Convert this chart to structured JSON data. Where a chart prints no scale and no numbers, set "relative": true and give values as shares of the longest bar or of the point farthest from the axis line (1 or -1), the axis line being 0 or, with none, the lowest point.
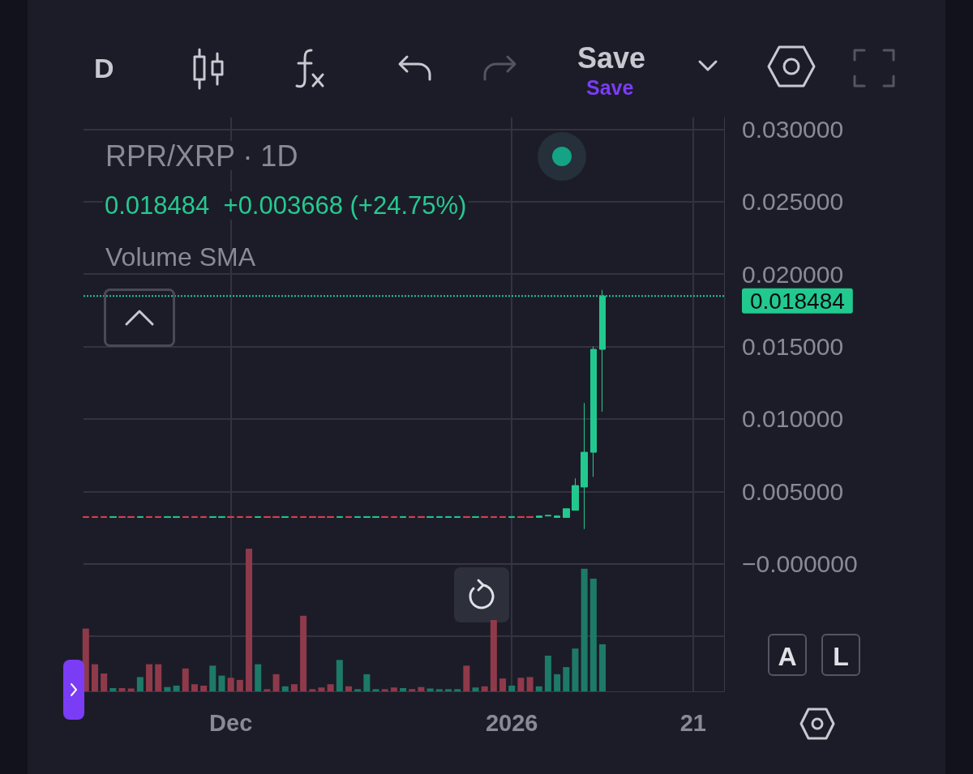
{
  "chart_data": [
    {
      "type": "candlestick",
      "title": "RPR/XRP · 1D",
      "subtitle": "0.018484  +0.003668 (+24.75%)",
      "annotations": [
        "Volume SMA",
        "D",
        "Save",
        "Save",
        "A",
        "L"
      ],
      "x": [
        "2025-11-15",
        "2025-11-16",
        "2025-11-17",
        "2025-11-18",
        "2025-11-19",
        "2025-11-20",
        "2025-11-21",
        "2025-11-22",
        "2025-11-23",
        "2025-11-24",
        "2025-11-25",
        "2025-11-26",
        "2025-11-27",
        "2025-11-28",
        "2025-11-29",
        "2025-11-30",
        "2025-12-01",
        "2025-12-02",
        "2025-12-03",
        "2025-12-04",
        "2025-12-05",
        "2025-12-06",
        "2025-12-07",
        "2025-12-08",
        "2025-12-09",
        "2025-12-10",
        "2025-12-11",
        "2025-12-12",
        "2025-12-13",
        "2025-12-14",
        "2025-12-15",
        "2025-12-16",
        "2025-12-17",
        "2025-12-18",
        "2025-12-19",
        "2025-12-20",
        "2025-12-21",
        "2025-12-22",
        "2025-12-23",
        "2025-12-24",
        "2025-12-25",
        "2025-12-26",
        "2025-12-27",
        "2025-12-28",
        "2025-12-29",
        "2025-12-30",
        "2025-12-31",
        "2026-01-01",
        "2026-01-02",
        "2026-01-03",
        "2026-01-04",
        "2026-01-05",
        "2026-01-06",
        "2026-01-07",
        "2026-01-08",
        "2026-01-09",
        "2026-01-10",
        "2026-01-11"
      ],
      "ohlc": [
        [
          0.00326,
          0.00327,
          0.00319,
          0.0032
        ],
        [
          0.00326,
          0.00327,
          0.00319,
          0.0032
        ],
        [
          0.00326,
          0.00327,
          0.00319,
          0.0032
        ],
        [
          0.0032,
          0.00327,
          0.00319,
          0.00326
        ],
        [
          0.00326,
          0.00327,
          0.00319,
          0.0032
        ],
        [
          0.00326,
          0.00327,
          0.00319,
          0.0032
        ],
        [
          0.0032,
          0.00327,
          0.00319,
          0.00326
        ],
        [
          0.00326,
          0.00327,
          0.00319,
          0.0032
        ],
        [
          0.00326,
          0.00327,
          0.00319,
          0.0032
        ],
        [
          0.0032,
          0.00327,
          0.00319,
          0.00326
        ],
        [
          0.0032,
          0.00327,
          0.00319,
          0.00326
        ],
        [
          0.00326,
          0.00327,
          0.00319,
          0.0032
        ],
        [
          0.00326,
          0.00327,
          0.00319,
          0.0032
        ],
        [
          0.00326,
          0.00327,
          0.00319,
          0.0032
        ],
        [
          0.0032,
          0.00327,
          0.00319,
          0.00326
        ],
        [
          0.0032,
          0.00327,
          0.00319,
          0.00326
        ],
        [
          0.00326,
          0.00327,
          0.00319,
          0.0032
        ],
        [
          0.00326,
          0.00327,
          0.00319,
          0.0032
        ],
        [
          0.00326,
          0.00327,
          0.00319,
          0.0032
        ],
        [
          0.0032,
          0.00327,
          0.00319,
          0.00326
        ],
        [
          0.00326,
          0.00327,
          0.00319,
          0.0032
        ],
        [
          0.00326,
          0.00327,
          0.00319,
          0.0032
        ],
        [
          0.0032,
          0.00327,
          0.00319,
          0.00326
        ],
        [
          0.00326,
          0.00327,
          0.00319,
          0.0032
        ],
        [
          0.00326,
          0.00327,
          0.00319,
          0.0032
        ],
        [
          0.00326,
          0.00327,
          0.00319,
          0.0032
        ],
        [
          0.00326,
          0.00327,
          0.00319,
          0.0032
        ],
        [
          0.00326,
          0.00327,
          0.00319,
          0.0032
        ],
        [
          0.0032,
          0.00327,
          0.00319,
          0.00326
        ],
        [
          0.00326,
          0.00327,
          0.00319,
          0.0032
        ],
        [
          0.0032,
          0.00327,
          0.00319,
          0.00326
        ],
        [
          0.0032,
          0.00327,
          0.00319,
          0.00326
        ],
        [
          0.0032,
          0.00327,
          0.00319,
          0.00326
        ],
        [
          0.00326,
          0.00327,
          0.00319,
          0.0032
        ],
        [
          0.00326,
          0.00327,
          0.00319,
          0.0032
        ],
        [
          0.0032,
          0.00327,
          0.00319,
          0.00326
        ],
        [
          0.00326,
          0.00327,
          0.00319,
          0.0032
        ],
        [
          0.00326,
          0.00327,
          0.00319,
          0.0032
        ],
        [
          0.0032,
          0.00327,
          0.00319,
          0.00326
        ],
        [
          0.0032,
          0.00327,
          0.00319,
          0.00326
        ],
        [
          0.0032,
          0.00327,
          0.00319,
          0.00326
        ],
        [
          0.0032,
          0.00327,
          0.00319,
          0.00326
        ],
        [
          0.00326,
          0.00327,
          0.00319,
          0.0032
        ],
        [
          0.0032,
          0.00327,
          0.00319,
          0.00326
        ],
        [
          0.00326,
          0.00327,
          0.00319,
          0.0032
        ],
        [
          0.00326,
          0.00327,
          0.00319,
          0.0032
        ],
        [
          0.00326,
          0.00327,
          0.00319,
          0.0032
        ],
        [
          0.0032,
          0.00327,
          0.00319,
          0.00326
        ],
        [
          0.00326,
          0.00327,
          0.00319,
          0.0032
        ],
        [
          0.00326,
          0.00327,
          0.00319,
          0.0032
        ],
        [
          0.0032,
          0.0033,
          0.0032,
          0.0033
        ],
        [
          0.0033,
          0.00335,
          0.0033,
          0.00335
        ],
        [
          0.0032,
          0.00335,
          0.0032,
          0.0033
        ],
        [
          0.0032,
          0.0038,
          0.0032,
          0.0038
        ],
        [
          0.0037,
          0.0059,
          0.0037,
          0.0054
        ],
        [
          0.0053,
          0.0111,
          0.0024,
          0.0077
        ],
        [
          0.0077,
          0.015,
          0.006,
          0.0148
        ],
        [
          0.0148,
          0.0189,
          0.0105,
          0.018484
        ]
      ],
      "colors": [
        "#e0404f",
        "#e0404f",
        "#e0404f",
        "#22c98f",
        "#e0404f",
        "#e0404f",
        "#22c98f",
        "#e0404f",
        "#e0404f",
        "#22c98f",
        "#22c98f",
        "#e0404f",
        "#e0404f",
        "#e0404f",
        "#22c98f",
        "#22c98f",
        "#e0404f",
        "#e0404f",
        "#e0404f",
        "#22c98f",
        "#e0404f",
        "#e0404f",
        "#22c98f",
        "#e0404f",
        "#e0404f",
        "#e0404f",
        "#e0404f",
        "#e0404f",
        "#22c98f",
        "#e0404f",
        "#22c98f",
        "#22c98f",
        "#22c98f",
        "#e0404f",
        "#e0404f",
        "#22c98f",
        "#e0404f",
        "#e0404f",
        "#22c98f",
        "#22c98f",
        "#22c98f",
        "#22c98f",
        "#e0404f",
        "#22c98f",
        "#e0404f",
        "#e0404f",
        "#e0404f",
        "#22c98f",
        "#e0404f",
        "#e0404f",
        "#22c98f",
        "#22c98f",
        "#22c98f",
        "#22c98f",
        "#22c98f",
        "#22c98f",
        "#22c98f",
        "#22c98f"
      ],
      "xlim": [
        "2025-11-14T18:00",
        "2026-01-24T10:00"
      ],
      "xticks": [
        {
          "value": "2025-12-01",
          "label": null
        },
        {
          "value": "2026-01-01",
          "label": null
        },
        {
          "value": "2026-01-21",
          "label": null
        }
      ],
      "ylim": [
        -0.0088,
        0.0308
      ],
      "yticks": [
        {
          "value": -0.005,
          "label": null
        },
        {
          "value": 0,
          "label": "−0.000000"
        },
        {
          "value": 0.005,
          "label": "0.005000"
        },
        {
          "value": 0.01,
          "label": "0.010000"
        },
        {
          "value": 0.015,
          "label": "0.015000"
        },
        {
          "value": 0.02,
          "label": "0.020000"
        },
        {
          "value": 0.025,
          "label": "0.025000"
        },
        {
          "value": 0.03,
          "label": "0.030000"
        }
      ],
      "ref_lines": [
        {
          "axis": "y",
          "value": 0.018484,
          "label": "0.018484",
          "color": "#22c98f",
          "line_style": "dotted"
        }
      ],
      "tick_labels": "y",
      "grid": true
    },
    {
      "type": "bar",
      "relative": true,
      "tick_labels": "x",
      "xlim": [
        "2025-11-14T18:00",
        "2026-01-24T10:00"
      ],
      "xticks": [
        {
          "value": "2025-12-01",
          "label": "Dec"
        },
        {
          "value": "2026-01-01",
          "label": "2026"
        },
        {
          "value": "2026-01-21",
          "label": "21"
        }
      ],
      "x": [
        "2025-11-15",
        "2025-11-16",
        "2025-11-17",
        "2025-11-18",
        "2025-11-19",
        "2025-11-20",
        "2025-11-21",
        "2025-11-22",
        "2025-11-23",
        "2025-11-24",
        "2025-11-25",
        "2025-11-26",
        "2025-11-27",
        "2025-11-28",
        "2025-11-29",
        "2025-11-30",
        "2025-12-01",
        "2025-12-02",
        "2025-12-03",
        "2025-12-04",
        "2025-12-05",
        "2025-12-06",
        "2025-12-07",
        "2025-12-08",
        "2025-12-09",
        "2025-12-10",
        "2025-12-11",
        "2025-12-12",
        "2025-12-13",
        "2025-12-14",
        "2025-12-15",
        "2025-12-16",
        "2025-12-17",
        "2025-12-18",
        "2025-12-19",
        "2025-12-20",
        "2025-12-21",
        "2025-12-22",
        "2025-12-23",
        "2025-12-24",
        "2025-12-25",
        "2025-12-26",
        "2025-12-27",
        "2025-12-28",
        "2025-12-29",
        "2025-12-30",
        "2025-12-31",
        "2026-01-01",
        "2026-01-02",
        "2026-01-03",
        "2026-01-04",
        "2026-01-05",
        "2026-01-06",
        "2026-01-07",
        "2026-01-08",
        "2026-01-09",
        "2026-01-10",
        "2026-01-11"
      ],
      "values": [
        0.44,
        0.19,
        0.125,
        0.023,
        0.023,
        0.02,
        0.1,
        0.19,
        0.19,
        0.03,
        0.04,
        0.16,
        0.05,
        0.04,
        0.18,
        0.11,
        0.095,
        0.08,
        1,
        0.19,
        0.015,
        0.12,
        0.035,
        0.05,
        0.53,
        0.015,
        0.027,
        0.05,
        0.22,
        0.035,
        0.015,
        0.12,
        0.015,
        0.015,
        0.027,
        0.023,
        0.015,
        0.03,
        0.02,
        0.015,
        0.015,
        0.015,
        0.18,
        0.027,
        0.035,
        0.5,
        0.09,
        0.04,
        0.095,
        0.1,
        0.035,
        0.25,
        0.12,
        0.17,
        0.3,
        0.86,
        0.79,
        0.33
      ],
      "colors": [
        "#8f3a4a",
        "#8f3a4a",
        "#8f3a4a",
        "#1d7a68",
        "#8f3a4a",
        "#8f3a4a",
        "#1d7a68",
        "#8f3a4a",
        "#8f3a4a",
        "#1d7a68",
        "#1d7a68",
        "#8f3a4a",
        "#8f3a4a",
        "#8f3a4a",
        "#1d7a68",
        "#1d7a68",
        "#8f3a4a",
        "#8f3a4a",
        "#8f3a4a",
        "#1d7a68",
        "#8f3a4a",
        "#8f3a4a",
        "#1d7a68",
        "#8f3a4a",
        "#8f3a4a",
        "#8f3a4a",
        "#8f3a4a",
        "#8f3a4a",
        "#1d7a68",
        "#8f3a4a",
        "#1d7a68",
        "#1d7a68",
        "#1d7a68",
        "#8f3a4a",
        "#8f3a4a",
        "#1d7a68",
        "#8f3a4a",
        "#8f3a4a",
        "#1d7a68",
        "#1d7a68",
        "#1d7a68",
        "#1d7a68",
        "#8f3a4a",
        "#1d7a68",
        "#8f3a4a",
        "#8f3a4a",
        "#8f3a4a",
        "#1d7a68",
        "#8f3a4a",
        "#8f3a4a",
        "#1d7a68",
        "#1d7a68",
        "#1d7a68",
        "#1d7a68",
        "#1d7a68",
        "#1d7a68",
        "#1d7a68",
        "#1d7a68"
      ],
      "grid": false
    }
  ]
}
